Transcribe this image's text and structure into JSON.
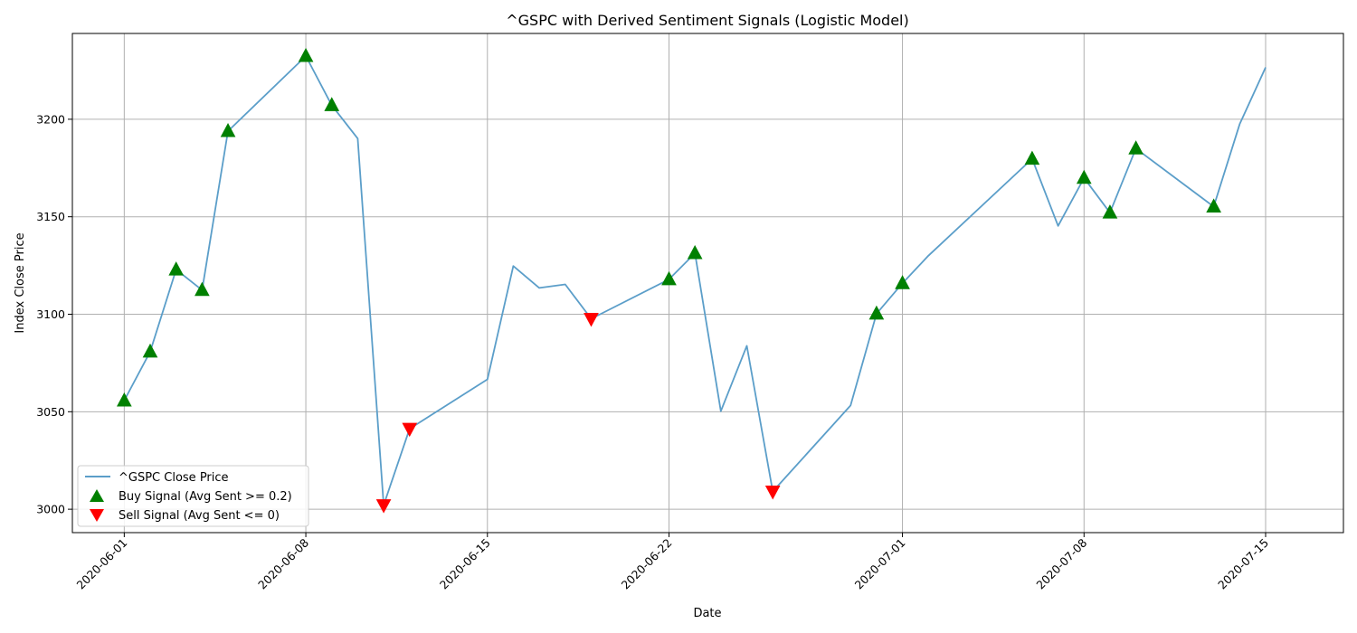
{
  "chart_data": {
    "type": "line",
    "title": "^GSPC with Derived Sentiment Signals (Logistic Model)",
    "xlabel": "Date",
    "ylabel": "Index Close Price",
    "ylim": [
      2988,
      3244
    ],
    "xlim": [
      "2020-05-30",
      "2020-07-18"
    ],
    "grid": true,
    "legend_position": "lower-left",
    "colors": {
      "line": "#5b9ec9",
      "buy": "#008000",
      "sell": "#ff0000"
    },
    "x_ticks": [
      "2020-06-01",
      "2020-06-08",
      "2020-06-15",
      "2020-06-22",
      "2020-07-01",
      "2020-07-08",
      "2020-07-15"
    ],
    "y_ticks": [
      3000,
      3050,
      3100,
      3150,
      3200
    ],
    "series": [
      {
        "name": "^GSPC Close Price",
        "points": [
          [
            "2020-06-01",
            3055.7
          ],
          [
            "2020-06-02",
            3080.8
          ],
          [
            "2020-06-03",
            3122.9
          ],
          [
            "2020-06-04",
            3112.4
          ],
          [
            "2020-06-05",
            3193.9
          ],
          [
            "2020-06-08",
            3232.4
          ],
          [
            "2020-06-09",
            3207.2
          ],
          [
            "2020-06-10",
            3190.1
          ],
          [
            "2020-06-11",
            3002.1
          ],
          [
            "2020-06-12",
            3041.3
          ],
          [
            "2020-06-15",
            3066.6
          ],
          [
            "2020-06-16",
            3124.7
          ],
          [
            "2020-06-17",
            3113.5
          ],
          [
            "2020-06-18",
            3115.3
          ],
          [
            "2020-06-19",
            3097.7
          ],
          [
            "2020-06-22",
            3117.9
          ],
          [
            "2020-06-23",
            3131.3
          ],
          [
            "2020-06-24",
            3050.3
          ],
          [
            "2020-06-25",
            3083.8
          ],
          [
            "2020-06-26",
            3009.1
          ],
          [
            "2020-06-29",
            3053.2
          ],
          [
            "2020-06-30",
            3100.3
          ],
          [
            "2020-07-01",
            3115.9
          ],
          [
            "2020-07-02",
            3130.0
          ],
          [
            "2020-07-06",
            3179.7
          ],
          [
            "2020-07-07",
            3145.3
          ],
          [
            "2020-07-08",
            3169.9
          ],
          [
            "2020-07-09",
            3152.1
          ],
          [
            "2020-07-10",
            3185.0
          ],
          [
            "2020-07-13",
            3155.2
          ],
          [
            "2020-07-14",
            3197.5
          ],
          [
            "2020-07-15",
            3226.6
          ]
        ]
      },
      {
        "name": "Buy Signal (Avg Sent >= 0.2)",
        "marker": "triangle-up",
        "points": [
          [
            "2020-06-01",
            3055.7
          ],
          [
            "2020-06-02",
            3080.8
          ],
          [
            "2020-06-03",
            3122.9
          ],
          [
            "2020-06-04",
            3112.4
          ],
          [
            "2020-06-05",
            3193.9
          ],
          [
            "2020-06-08",
            3232.4
          ],
          [
            "2020-06-09",
            3207.2
          ],
          [
            "2020-06-22",
            3117.9
          ],
          [
            "2020-06-23",
            3131.3
          ],
          [
            "2020-06-30",
            3100.3
          ],
          [
            "2020-07-01",
            3115.9
          ],
          [
            "2020-07-06",
            3179.7
          ],
          [
            "2020-07-08",
            3169.9
          ],
          [
            "2020-07-09",
            3152.1
          ],
          [
            "2020-07-10",
            3185.0
          ],
          [
            "2020-07-13",
            3155.2
          ]
        ]
      },
      {
        "name": "Sell Signal (Avg Sent <= 0)",
        "marker": "triangle-down",
        "points": [
          [
            "2020-06-11",
            3002.1
          ],
          [
            "2020-06-12",
            3041.3
          ],
          [
            "2020-06-19",
            3097.7
          ],
          [
            "2020-06-26",
            3009.1
          ]
        ]
      }
    ]
  }
}
